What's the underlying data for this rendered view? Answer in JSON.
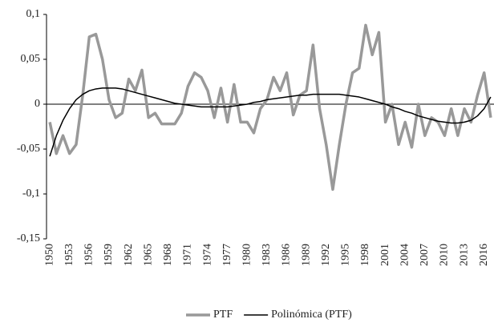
{
  "chart_data": {
    "type": "line",
    "categories": [
      "1950",
      null,
      null,
      "1953",
      null,
      null,
      "1956",
      null,
      null,
      "1959",
      null,
      null,
      "1962",
      null,
      null,
      "1965",
      null,
      null,
      "1968",
      null,
      null,
      "1971",
      null,
      null,
      "1974",
      null,
      null,
      "1977",
      null,
      null,
      "1980",
      null,
      null,
      "1983",
      null,
      null,
      "1986",
      null,
      null,
      "1989",
      null,
      null,
      "1992",
      null,
      null,
      "1995",
      null,
      null,
      "1998",
      null,
      null,
      "2001",
      null,
      null,
      "2004",
      null,
      null,
      "2007",
      null,
      null,
      "2010",
      null,
      null,
      "2013",
      null,
      null,
      "2016",
      null
    ],
    "series": [
      {
        "name": "PTF",
        "color": "#999999",
        "values": [
          -0.02,
          -0.055,
          -0.035,
          -0.055,
          -0.045,
          0.01,
          0.075,
          0.078,
          0.05,
          0.005,
          -0.015,
          -0.01,
          0.028,
          0.015,
          0.038,
          -0.015,
          -0.01,
          -0.022,
          -0.022,
          -0.022,
          -0.01,
          0.02,
          0.035,
          0.03,
          0.015,
          -0.015,
          0.018,
          -0.02,
          0.022,
          -0.02,
          -0.02,
          -0.032,
          -0.005,
          0.005,
          0.03,
          0.015,
          0.035,
          -0.012,
          0.01,
          0.015,
          0.066,
          -0.005,
          -0.045,
          -0.095,
          -0.045,
          0.0,
          0.035,
          0.04,
          0.088,
          0.055,
          0.08,
          -0.02,
          0.0,
          -0.045,
          -0.02,
          -0.048,
          0.0,
          -0.035,
          -0.015,
          -0.02,
          -0.035,
          -0.005,
          -0.035,
          -0.005,
          -0.02,
          0.01,
          0.035,
          -0.015
        ]
      },
      {
        "name": "Polinómica (PTF)",
        "color": "#000000",
        "values": [
          -0.058,
          -0.035,
          -0.018,
          -0.005,
          0.005,
          0.011,
          0.015,
          0.017,
          0.018,
          0.018,
          0.018,
          0.017,
          0.015,
          0.013,
          0.011,
          0.009,
          0.007,
          0.005,
          0.003,
          0.001,
          0.0,
          -0.001,
          -0.002,
          -0.003,
          -0.003,
          -0.003,
          -0.003,
          -0.003,
          -0.002,
          -0.001,
          0.0,
          0.002,
          0.003,
          0.005,
          0.006,
          0.007,
          0.008,
          0.009,
          0.01,
          0.01,
          0.011,
          0.011,
          0.011,
          0.011,
          0.011,
          0.01,
          0.009,
          0.008,
          0.006,
          0.004,
          0.002,
          0.0,
          -0.003,
          -0.005,
          -0.008,
          -0.01,
          -0.013,
          -0.015,
          -0.017,
          -0.019,
          -0.02,
          -0.021,
          -0.021,
          -0.02,
          -0.018,
          -0.013,
          -0.005,
          0.008
        ]
      }
    ],
    "ylim": [
      -0.15,
      0.1
    ],
    "yticks": [
      {
        "value": -0.15,
        "label": "-0,15"
      },
      {
        "value": -0.1,
        "label": "-0,1"
      },
      {
        "value": -0.05,
        "label": "-0,05"
      },
      0,
      {
        "value": 0.05,
        "label": "0,05"
      },
      {
        "value": 0.1,
        "label": "0,1"
      }
    ],
    "legend": "bottom"
  }
}
